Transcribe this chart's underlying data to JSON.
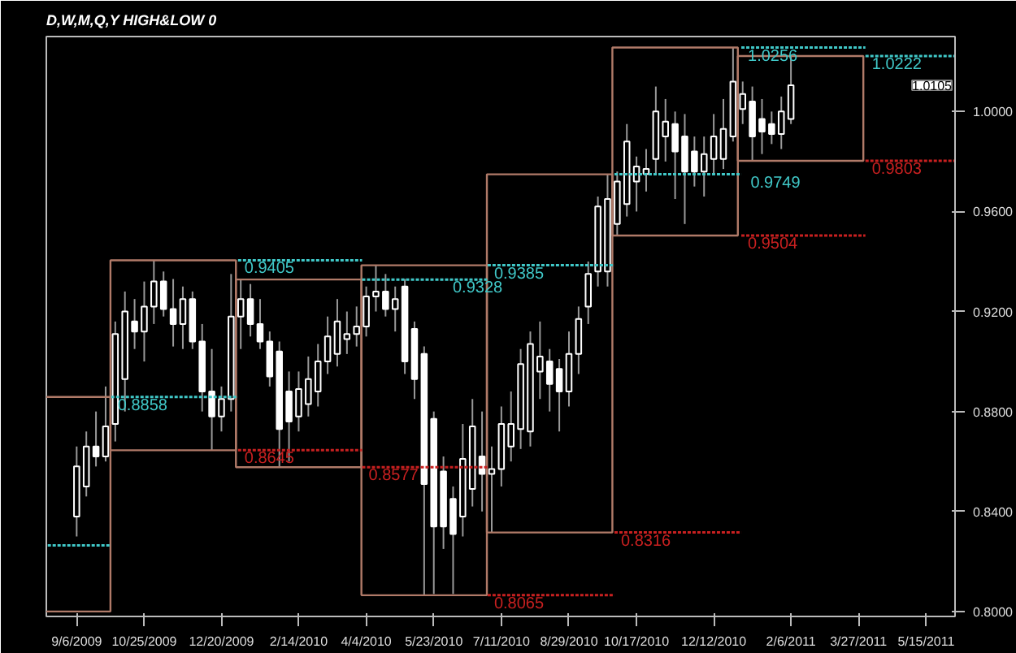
{
  "chart_data": {
    "type": "candlestick",
    "title": "D,W,M,Q,Y HIGH&LOW 0",
    "color": "#ffffff",
    "x": [
      "2009-09-06",
      "2009-09-13",
      "2009-09-20",
      "2009-09-27",
      "2009-10-04",
      "2009-10-11",
      "2009-10-18",
      "2009-10-25",
      "2009-11-01",
      "2009-11-08",
      "2009-11-15",
      "2009-11-22",
      "2009-11-29",
      "2009-12-06",
      "2009-12-13",
      "2009-12-20",
      "2009-12-27",
      "2010-01-03",
      "2010-01-10",
      "2010-01-17",
      "2010-01-24",
      "2010-01-31",
      "2010-02-07",
      "2010-02-14",
      "2010-02-21",
      "2010-02-28",
      "2010-03-07",
      "2010-03-14",
      "2010-03-21",
      "2010-03-28",
      "2010-04-04",
      "2010-04-11",
      "2010-04-18",
      "2010-04-25",
      "2010-05-02",
      "2010-05-09",
      "2010-05-16",
      "2010-05-23",
      "2010-05-30",
      "2010-06-06",
      "2010-06-13",
      "2010-06-20",
      "2010-06-27",
      "2010-07-04",
      "2010-07-11",
      "2010-07-18",
      "2010-07-25",
      "2010-08-01",
      "2010-08-08",
      "2010-08-15",
      "2010-08-22",
      "2010-08-29",
      "2010-09-05",
      "2010-09-12",
      "2010-09-19",
      "2010-09-26",
      "2010-10-03",
      "2010-10-10",
      "2010-10-17",
      "2010-10-24",
      "2010-10-31",
      "2010-11-07",
      "2010-11-14",
      "2010-11-21",
      "2010-11-28",
      "2010-12-05",
      "2010-12-12",
      "2010-12-19",
      "2010-12-26",
      "2011-01-02",
      "2011-01-09",
      "2011-01-16",
      "2011-01-23",
      "2011-01-30",
      "2011-02-06"
    ],
    "ohlc": [
      [
        0.838,
        0.866,
        0.83,
        0.858
      ],
      [
        0.85,
        0.872,
        0.846,
        0.866
      ],
      [
        0.866,
        0.88,
        0.858,
        0.862
      ],
      [
        0.862,
        0.89,
        0.86,
        0.874
      ],
      [
        0.875,
        0.916,
        0.868,
        0.911
      ],
      [
        0.893,
        0.928,
        0.88,
        0.92
      ],
      [
        0.916,
        0.925,
        0.905,
        0.912
      ],
      [
        0.912,
        0.932,
        0.9,
        0.922
      ],
      [
        0.922,
        0.9405,
        0.915,
        0.932
      ],
      [
        0.932,
        0.936,
        0.918,
        0.921
      ],
      [
        0.921,
        0.933,
        0.906,
        0.915
      ],
      [
        0.915,
        0.93,
        0.905,
        0.925
      ],
      [
        0.925,
        0.928,
        0.905,
        0.908
      ],
      [
        0.908,
        0.915,
        0.88,
        0.888
      ],
      [
        0.888,
        0.905,
        0.8645,
        0.878
      ],
      [
        0.878,
        0.89,
        0.872,
        0.885
      ],
      [
        0.885,
        0.935,
        0.88,
        0.918
      ],
      [
        0.918,
        0.9328,
        0.905,
        0.925
      ],
      [
        0.925,
        0.931,
        0.91,
        0.915
      ],
      [
        0.915,
        0.925,
        0.905,
        0.908
      ],
      [
        0.908,
        0.912,
        0.89,
        0.894
      ],
      [
        0.904,
        0.908,
        0.8577,
        0.873
      ],
      [
        0.888,
        0.896,
        0.86,
        0.876
      ],
      [
        0.878,
        0.896,
        0.872,
        0.889
      ],
      [
        0.883,
        0.902,
        0.878,
        0.893
      ],
      [
        0.888,
        0.907,
        0.882,
        0.9
      ],
      [
        0.9,
        0.918,
        0.895,
        0.91
      ],
      [
        0.903,
        0.925,
        0.898,
        0.916
      ],
      [
        0.909,
        0.92,
        0.903,
        0.911
      ],
      [
        0.911,
        0.922,
        0.906,
        0.914
      ],
      [
        0.914,
        0.93,
        0.91,
        0.926
      ],
      [
        0.926,
        0.9385,
        0.92,
        0.928
      ],
      [
        0.928,
        0.935,
        0.918,
        0.921
      ],
      [
        0.921,
        0.93,
        0.912,
        0.925
      ],
      [
        0.93,
        0.933,
        0.895,
        0.9
      ],
      [
        0.913,
        0.916,
        0.885,
        0.893
      ],
      [
        0.903,
        0.906,
        0.8065,
        0.851
      ],
      [
        0.877,
        0.88,
        0.807,
        0.834
      ],
      [
        0.856,
        0.862,
        0.825,
        0.834
      ],
      [
        0.845,
        0.85,
        0.807,
        0.831
      ],
      [
        0.838,
        0.875,
        0.83,
        0.861
      ],
      [
        0.849,
        0.885,
        0.842,
        0.874
      ],
      [
        0.862,
        0.88,
        0.84,
        0.855
      ],
      [
        0.855,
        0.866,
        0.8316,
        0.857
      ],
      [
        0.857,
        0.882,
        0.85,
        0.875
      ],
      [
        0.866,
        0.888,
        0.86,
        0.875
      ],
      [
        0.873,
        0.905,
        0.865,
        0.899
      ],
      [
        0.872,
        0.912,
        0.866,
        0.907
      ],
      [
        0.896,
        0.916,
        0.885,
        0.902
      ],
      [
        0.9,
        0.905,
        0.88,
        0.891
      ],
      [
        0.897,
        0.901,
        0.872,
        0.888
      ],
      [
        0.888,
        0.912,
        0.882,
        0.903
      ],
      [
        0.903,
        0.922,
        0.895,
        0.917
      ],
      [
        0.922,
        0.94,
        0.915,
        0.935
      ],
      [
        0.936,
        0.966,
        0.93,
        0.962
      ],
      [
        0.936,
        0.9749,
        0.93,
        0.965
      ],
      [
        0.955,
        0.976,
        0.9504,
        0.972
      ],
      [
        0.963,
        0.995,
        0.958,
        0.988
      ],
      [
        0.972,
        0.982,
        0.96,
        0.978
      ],
      [
        0.975,
        0.985,
        0.968,
        0.977
      ],
      [
        0.981,
        1.01,
        0.975,
        1.0
      ],
      [
        0.99,
        1.005,
        0.98,
        0.996
      ],
      [
        0.995,
        1.0,
        0.965,
        0.984
      ],
      [
        0.99,
        0.999,
        0.955,
        0.976
      ],
      [
        0.984,
        0.99,
        0.97,
        0.976
      ],
      [
        0.976,
        0.99,
        0.966,
        0.983
      ],
      [
        0.981,
        0.999,
        0.975,
        0.99
      ],
      [
        0.981,
        1.005,
        0.977,
        0.993
      ],
      [
        0.99,
        1.0256,
        0.988,
        1.012
      ],
      [
        1.001,
        1.012,
        0.995,
        1.007
      ],
      [
        1.004,
        1.01,
        0.9803,
        0.99
      ],
      [
        0.997,
        1.005,
        0.983,
        0.992
      ],
      [
        0.995,
        1.0,
        0.987,
        0.991
      ],
      [
        0.991,
        1.006,
        0.985,
        1.0
      ],
      [
        0.997,
        1.0222,
        0.995,
        1.0105
      ]
    ],
    "series": [
      {
        "type": "bar",
        "color": "#b07a68",
        "x": [
          "2009-08-16",
          "2009-11-15",
          "2010-02-14",
          "2010-05-16",
          "2010-08-15",
          "2010-11-14",
          "2011-02-13"
        ],
        "base": [
          0.8,
          0.8645,
          0.8577,
          0.8065,
          0.8316,
          0.9504,
          0.9803
        ],
        "values": [
          0.0858,
          0.076,
          0.0751,
          0.132,
          0.1433,
          0.0752,
          0.0419
        ]
      },
      {
        "type": "line",
        "color": "#40c8c8",
        "line_style": "dashed",
        "x": [
          "2009-08-16",
          "2009-10-01"
        ],
        "values": [
          0.8264,
          0.8264
        ]
      },
      {
        "type": "line",
        "color": "#40c8c8",
        "line_style": "dashed",
        "x": [
          "2009-10-01",
          "2010-01-01"
        ],
        "values": [
          0.8858,
          0.8858
        ]
      },
      {
        "type": "line",
        "color": "#40c8c8",
        "line_style": "dashed",
        "x": [
          "2010-01-01",
          "2010-04-01"
        ],
        "values": [
          0.9405,
          0.9405
        ]
      },
      {
        "type": "line",
        "color": "#c82020",
        "line_style": "dashed",
        "x": [
          "2010-01-01",
          "2010-04-01"
        ],
        "values": [
          0.8645,
          0.8645
        ]
      },
      {
        "type": "line",
        "color": "#40c8c8",
        "line_style": "dashed",
        "x": [
          "2010-04-01",
          "2010-07-01"
        ],
        "values": [
          0.9328,
          0.9328
        ]
      },
      {
        "type": "line",
        "color": "#c82020",
        "line_style": "dashed",
        "x": [
          "2010-04-01",
          "2010-07-01"
        ],
        "values": [
          0.8577,
          0.8577
        ]
      },
      {
        "type": "line",
        "color": "#40c8c8",
        "line_style": "dashed",
        "x": [
          "2010-07-01",
          "2010-10-01"
        ],
        "values": [
          0.9385,
          0.9385
        ]
      },
      {
        "type": "line",
        "color": "#c82020",
        "line_style": "dashed",
        "x": [
          "2010-07-01",
          "2010-10-01"
        ],
        "values": [
          0.8065,
          0.8065
        ]
      },
      {
        "type": "line",
        "color": "#40c8c8",
        "line_style": "dashed",
        "x": [
          "2010-10-01",
          "2011-01-01"
        ],
        "values": [
          0.9749,
          0.9749
        ]
      },
      {
        "type": "line",
        "color": "#c82020",
        "line_style": "dashed",
        "x": [
          "2010-10-01",
          "2011-01-01"
        ],
        "values": [
          0.8316,
          0.8316
        ]
      },
      {
        "type": "line",
        "color": "#40c8c8",
        "line_style": "dashed",
        "x": [
          "2011-01-01",
          "2011-04-01"
        ],
        "values": [
          1.0256,
          1.0256
        ]
      },
      {
        "type": "line",
        "color": "#c82020",
        "line_style": "dashed",
        "x": [
          "2011-01-01",
          "2011-04-01"
        ],
        "values": [
          0.9504,
          0.9504
        ]
      },
      {
        "type": "line",
        "color": "#40c8c8",
        "line_style": "dashed",
        "x": [
          "2011-04-01",
          "2011-06-05"
        ],
        "values": [
          1.0222,
          1.0222
        ]
      },
      {
        "type": "line",
        "color": "#c82020",
        "line_style": "dashed",
        "x": [
          "2011-04-01",
          "2011-06-05"
        ],
        "values": [
          0.9803,
          0.9803
        ]
      }
    ],
    "annotations": [
      {
        "text": "0.8858",
        "x": "2009-10-01",
        "y": 0.8858
      },
      {
        "text": "0.9405",
        "x": "2010-01-01",
        "y": 0.9405
      },
      {
        "text": "0.8645",
        "x": "2010-01-01",
        "y": 0.8645
      },
      {
        "text": "0.9328",
        "x": "2010-06-01",
        "y": 0.9328
      },
      {
        "text": "0.8577",
        "x": "2010-04-01",
        "y": 0.8577
      },
      {
        "text": "0.9385",
        "x": "2010-07-01",
        "y": 0.9385
      },
      {
        "text": "0.8065",
        "x": "2010-07-01",
        "y": 0.8065
      },
      {
        "text": "0.9749",
        "x": "2011-01-03",
        "y": 0.9749
      },
      {
        "text": "0.8316",
        "x": "2010-10-01",
        "y": 0.8316
      },
      {
        "text": "1.0256",
        "x": "2011-01-01",
        "y": 1.0256
      },
      {
        "text": "0.9504",
        "x": "2011-01-01",
        "y": 0.9504
      },
      {
        "text": "1.0222",
        "x": "2011-04-01",
        "y": 1.0222
      },
      {
        "text": "0.9803",
        "x": "2011-04-01",
        "y": 0.9803
      },
      "1.0105"
    ],
    "xlim": [
      "2009-08-15",
      "2011-06-05"
    ],
    "ylim": [
      0.798,
      1.03
    ],
    "xticks": [
      {
        "value": "2009-09-06",
        "label": "9/6/2009"
      },
      {
        "value": "2009-10-25",
        "label": "10/25/2009"
      },
      {
        "value": "2009-12-20",
        "label": "12/20/2009"
      },
      {
        "value": "2010-02-14",
        "label": "2/14/2010"
      },
      {
        "value": "2010-04-04",
        "label": "4/4/2010"
      },
      {
        "value": "2010-05-23",
        "label": "5/23/2010"
      },
      {
        "value": "2010-07-11",
        "label": "7/11/2010"
      },
      {
        "value": "2010-08-29",
        "label": "8/29/2010"
      },
      {
        "value": "2010-10-17",
        "label": "10/17/2010"
      },
      {
        "value": "2010-12-12",
        "label": "12/12/2010"
      },
      {
        "value": "2011-02-06",
        "label": "2/6/2011"
      },
      {
        "value": "2011-03-27",
        "label": "3/27/2011"
      },
      {
        "value": "2011-05-15",
        "label": "5/15/2011"
      }
    ],
    "yticks": [
      {
        "value": 0.8,
        "label": "0.8000"
      },
      {
        "value": 0.84,
        "label": "0.8400"
      },
      {
        "value": 0.88,
        "label": "0.8800"
      },
      {
        "value": 0.92,
        "label": "0.9200"
      },
      {
        "value": 0.96,
        "label": "0.9600"
      },
      {
        "value": 1.0,
        "label": "1.0000"
      }
    ],
    "grid": false
  }
}
